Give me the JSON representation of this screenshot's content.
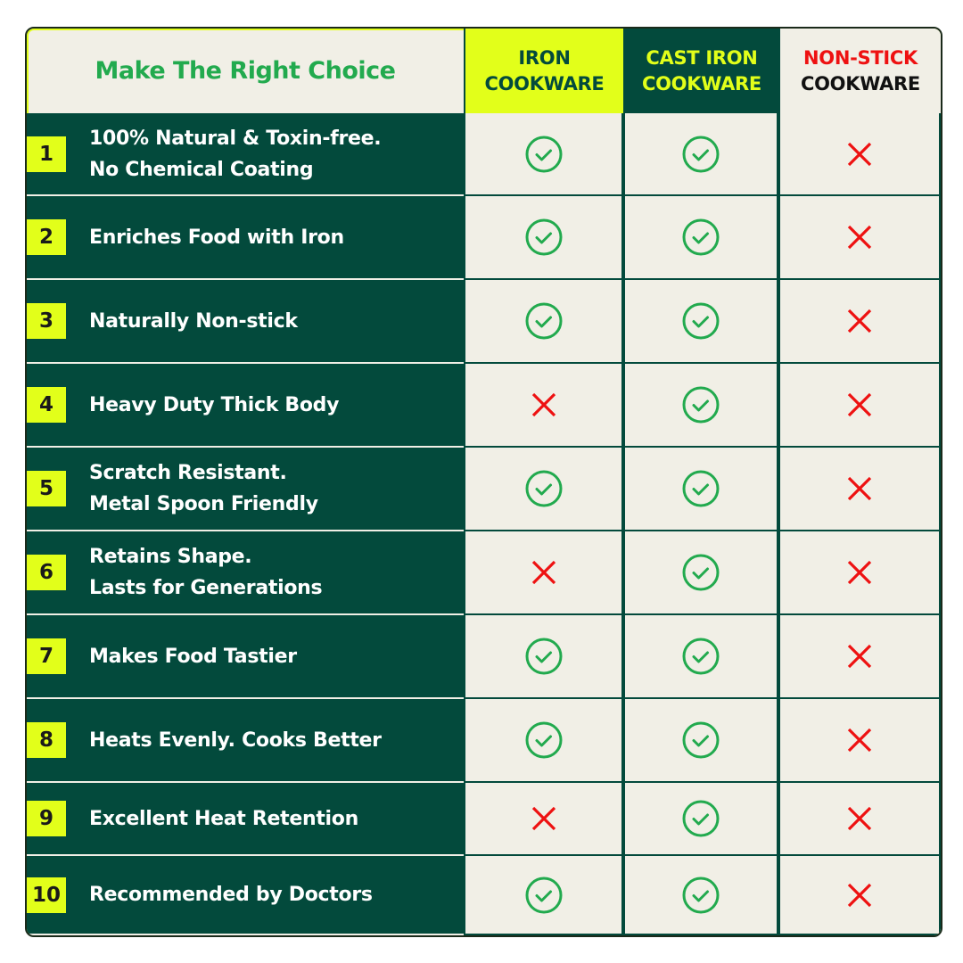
{
  "header": {
    "title": "Make The Right Choice",
    "columns": [
      {
        "line1": "IRON",
        "line2": "COOKWARE",
        "bg": "#e2ff1a",
        "line1_color": "#034a3c",
        "line2_color": "#034a3c"
      },
      {
        "line1": "CAST IRON",
        "line2": "COOKWARE",
        "bg": "#034a3c",
        "line1_color": "#e2ff1a",
        "line2_color": "#e2ff1a"
      },
      {
        "line1": "NON-STICK",
        "line2": "COOKWARE",
        "bg": "#f1efe6",
        "line1_color": "#ee1111",
        "line2_color": "#111111"
      }
    ]
  },
  "colors": {
    "check": "#22aa4e",
    "cross": "#ee1111",
    "dark_green": "#034a3c",
    "lime": "#e2ff1a",
    "cream": "#f1efe6"
  },
  "rows": [
    {
      "num": "1",
      "text": "100% Natural & Toxin-free.\nNo Chemical Coating",
      "marks": [
        "check",
        "check",
        "cross"
      ]
    },
    {
      "num": "2",
      "text": "Enriches Food with Iron",
      "marks": [
        "check",
        "check",
        "cross"
      ]
    },
    {
      "num": "3",
      "text": "Naturally Non-stick",
      "marks": [
        "check",
        "check",
        "cross"
      ]
    },
    {
      "num": "4",
      "text": "Heavy Duty Thick Body",
      "marks": [
        "cross",
        "check",
        "cross"
      ]
    },
    {
      "num": "5",
      "text": "Scratch Resistant.\nMetal Spoon Friendly",
      "marks": [
        "check",
        "check",
        "cross"
      ]
    },
    {
      "num": "6",
      "text": "Retains Shape.\nLasts for Generations",
      "marks": [
        "cross",
        "check",
        "cross"
      ]
    },
    {
      "num": "7",
      "text": "Makes Food Tastier",
      "marks": [
        "check",
        "check",
        "cross"
      ]
    },
    {
      "num": "8",
      "text": "Heats Evenly. Cooks Better",
      "marks": [
        "check",
        "check",
        "cross"
      ]
    },
    {
      "num": "9",
      "text": "Excellent Heat Retention",
      "marks": [
        "cross",
        "check",
        "cross"
      ]
    },
    {
      "num": "10",
      "text": "Recommended by Doctors",
      "marks": [
        "check",
        "check",
        "cross"
      ]
    }
  ]
}
